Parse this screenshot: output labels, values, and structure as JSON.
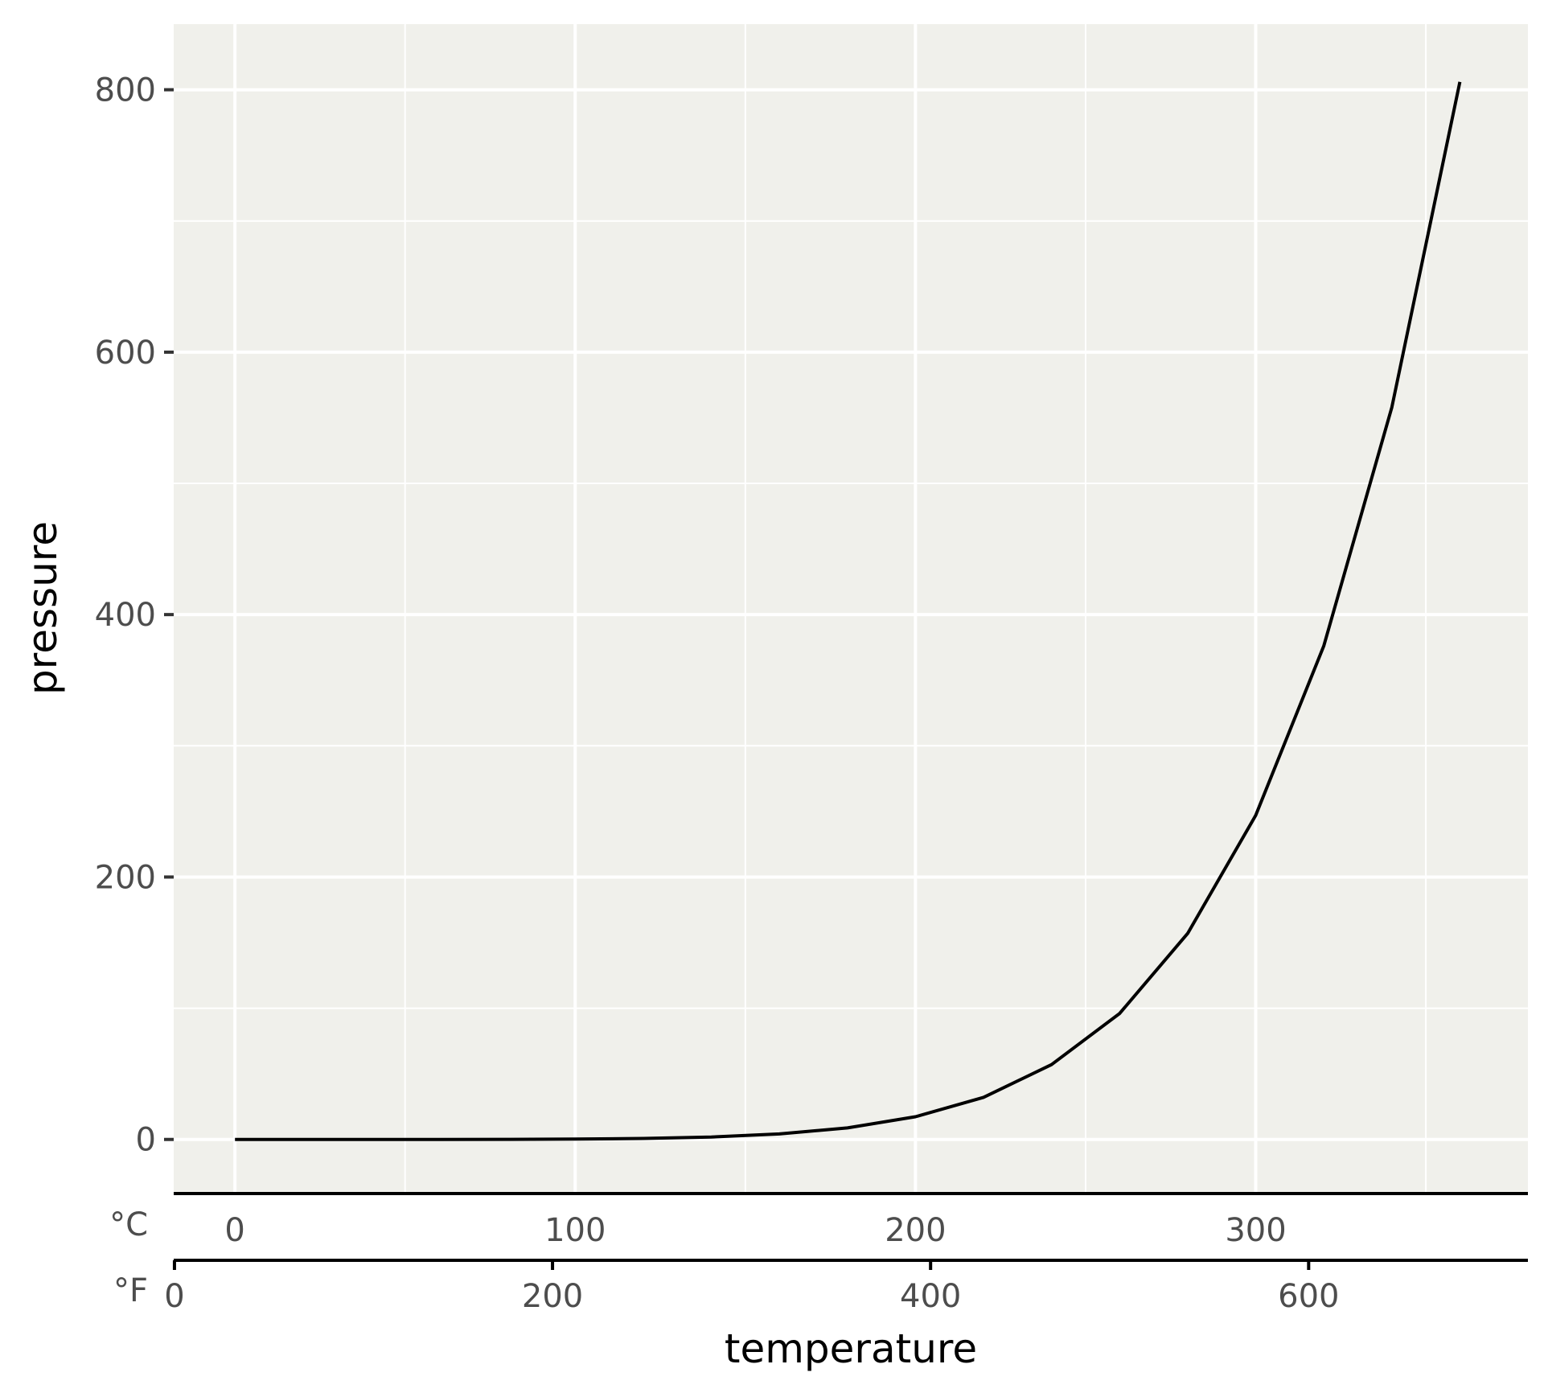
{
  "colors": {
    "panel_background": "#f0f0eb",
    "grid_line": "#ffffff",
    "line": "#000000",
    "tick_label": "#4d4d4d"
  },
  "chart_data": {
    "type": "line",
    "title": "",
    "xlabel": "temperature",
    "ylabel": "pressure",
    "x": [
      0,
      20,
      40,
      60,
      80,
      100,
      120,
      140,
      160,
      180,
      200,
      220,
      240,
      260,
      280,
      300,
      320,
      340,
      360
    ],
    "series": [
      {
        "values": [
          0.0002,
          0.0012,
          0.006,
          0.03,
          0.09,
          0.27,
          0.75,
          1.85,
          4.2,
          8.8,
          17.3,
          32.1,
          57.0,
          96.0,
          157.0,
          247.0,
          376.0,
          558.0,
          806.0
        ]
      }
    ],
    "xlim": [
      -18,
      380
    ],
    "ylim": [
      -40,
      850
    ],
    "y_ticks": [
      0,
      200,
      400,
      600,
      800
    ],
    "y_tick_labels": [
      "0",
      "200",
      "400",
      "600",
      "800"
    ],
    "y_minor_ticks": [
      100,
      300,
      500,
      700
    ],
    "x_ticks": [
      0,
      100,
      200,
      300
    ],
    "x_tick_labels": [
      "0",
      "100",
      "200",
      "300"
    ],
    "x_minor_ticks": [
      50,
      150,
      250,
      350
    ],
    "x_axis_unit": "°C",
    "secondary_x_axis": {
      "unit": "°F",
      "ticks": [
        0,
        200,
        400,
        600
      ],
      "tick_labels": [
        "0",
        "200",
        "400",
        "600"
      ]
    },
    "grid": true,
    "legend": "none"
  }
}
